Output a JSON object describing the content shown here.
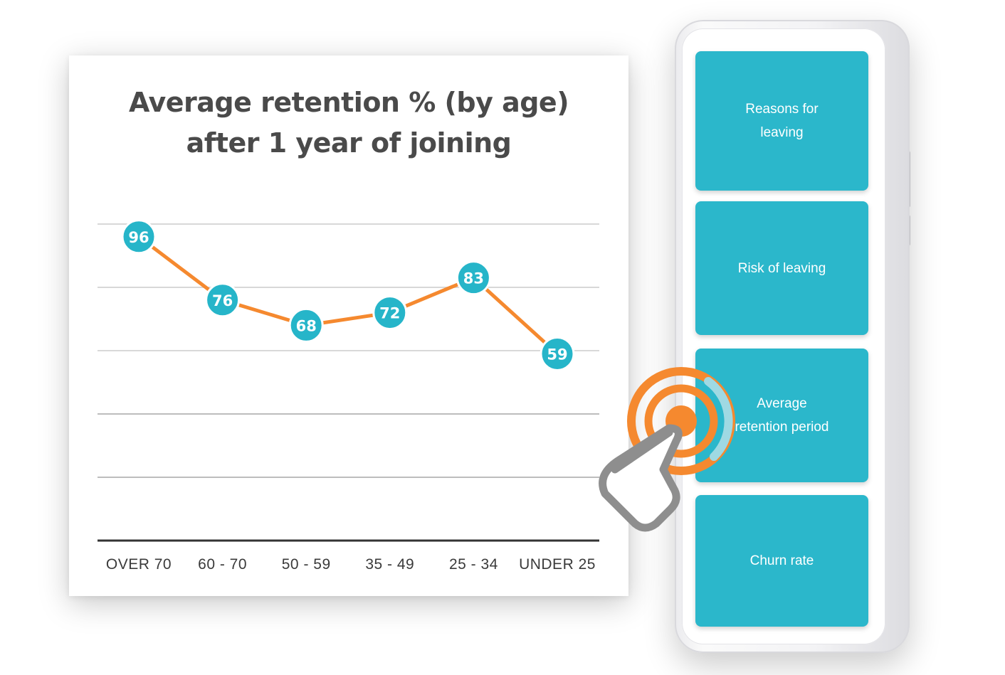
{
  "chart_data": {
    "type": "line",
    "title": "Average retention % (by age)",
    "title_line2": "after 1 year of joining",
    "categories": [
      "OVER 70",
      "60 - 70",
      "50 - 59",
      "35 - 49",
      "25 - 34",
      "UNDER 25"
    ],
    "values": [
      96,
      76,
      68,
      72,
      83,
      59
    ],
    "data_labels": [
      "96",
      "76",
      "68",
      "72",
      "83",
      "59"
    ],
    "ylim": [
      0,
      100
    ],
    "grid": true,
    "line_color": "#f5892f",
    "marker_color": "#26b5c9",
    "label_color": "#ffffff"
  },
  "menu": {
    "items": [
      {
        "label": "Reasons for leaving"
      },
      {
        "label": "Risk of leaving"
      },
      {
        "label": "Average retention period"
      },
      {
        "label": "Churn rate"
      }
    ],
    "card_color": "#2bb7cb"
  },
  "tap_indicator": {
    "icon": "hand-tap-icon",
    "ring_color": "#f5892f",
    "accent_color": "#9fd9e3"
  }
}
